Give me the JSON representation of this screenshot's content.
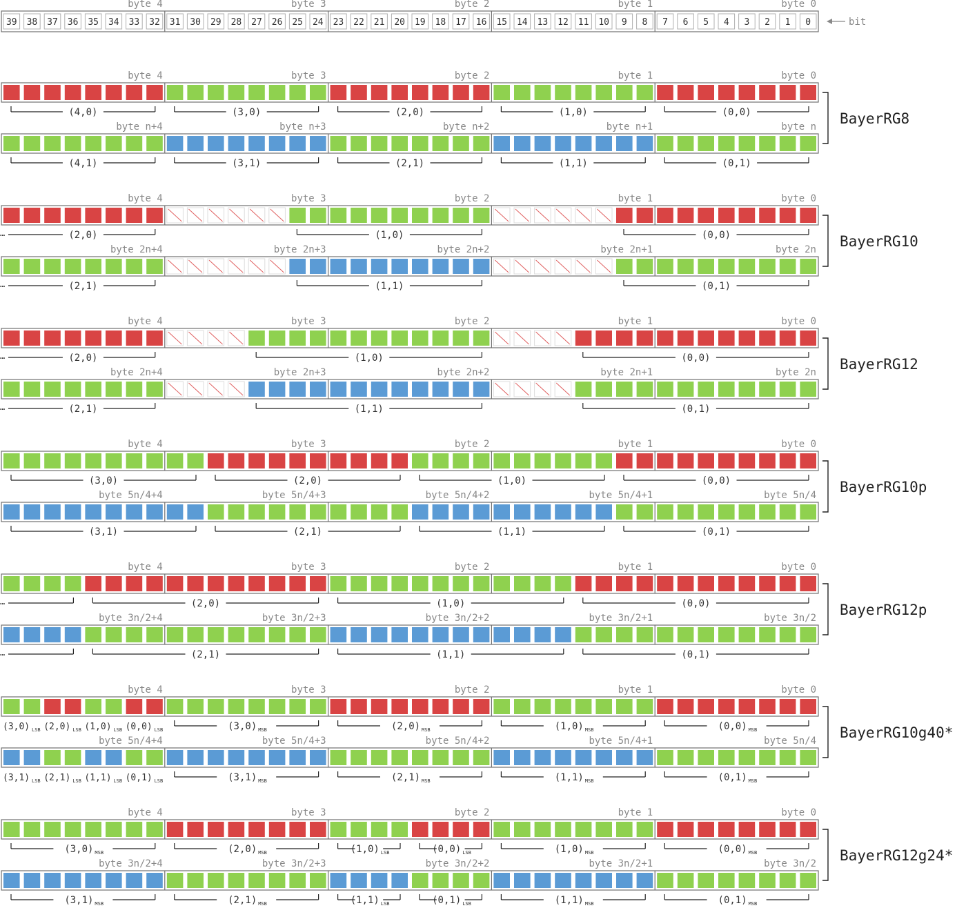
{
  "palette": {
    "red": "#d94444",
    "green": "#8fd14f",
    "blue": "#5b9bd5",
    "pad_stroke": "#e06060",
    "frame": "#707070",
    "text": "#333333",
    "label_gray": "#888888"
  },
  "header": {
    "bits": [
      "39",
      "38",
      "37",
      "36",
      "35",
      "34",
      "33",
      "32",
      "31",
      "30",
      "29",
      "28",
      "27",
      "26",
      "25",
      "24",
      "23",
      "22",
      "21",
      "20",
      "19",
      "18",
      "17",
      "16",
      "15",
      "14",
      "13",
      "12",
      "11",
      "10",
      "9",
      "8",
      "7",
      "6",
      "5",
      "4",
      "3",
      "2",
      "1",
      "0"
    ],
    "byte_labels": [
      "byte 4",
      "byte 3",
      "byte 2",
      "byte 1",
      "byte 0"
    ],
    "bit_arrow_label": "bit"
  },
  "formats": [
    {
      "name": "BayerRG8",
      "rows": [
        {
          "byte_labels": [
            "byte 4",
            "byte 3",
            "byte 2",
            "byte 1",
            "byte 0"
          ],
          "cells": "RRRRRRRRGGGGGGGGRRRRRRRRGGGGGGGGRRRRRRRR",
          "brackets": [
            {
              "label": "(4,0)",
              "from": 0,
              "to": 7,
              "cont": false
            },
            {
              "label": "(3,0)",
              "from": 8,
              "to": 15,
              "cont": false
            },
            {
              "label": "(2,0)",
              "from": 16,
              "to": 23,
              "cont": false
            },
            {
              "label": "(1,0)",
              "from": 24,
              "to": 31,
              "cont": false
            },
            {
              "label": "(0,0)",
              "from": 32,
              "to": 39,
              "cont": false
            }
          ]
        },
        {
          "byte_labels": [
            "byte n+4",
            "byte n+3",
            "byte n+2",
            "byte n+1",
            "byte n"
          ],
          "cells": "GGGGGGGGBBBBBBBBGGGGGGGGBBBBBBBBGGGGGGGG",
          "brackets": [
            {
              "label": "(4,1)",
              "from": 0,
              "to": 7,
              "cont": false
            },
            {
              "label": "(3,1)",
              "from": 8,
              "to": 15,
              "cont": false
            },
            {
              "label": "(2,1)",
              "from": 16,
              "to": 23,
              "cont": false
            },
            {
              "label": "(1,1)",
              "from": 24,
              "to": 31,
              "cont": false
            },
            {
              "label": "(0,1)",
              "from": 32,
              "to": 39,
              "cont": false
            }
          ]
        }
      ]
    },
    {
      "name": "BayerRG10",
      "rows": [
        {
          "byte_labels": [
            "byte 4",
            "byte 3",
            "byte 2",
            "byte 1",
            "byte 0"
          ],
          "cells": "RRRRRRRRXXXXXXGGGGGGGGGGXXXXXXRRRRRRRRRR",
          "brackets": [
            {
              "label": "(2,0)",
              "from": 0,
              "to": 7,
              "cont": true
            },
            {
              "label": "(1,0)",
              "from": 14,
              "to": 23,
              "cont": false
            },
            {
              "label": "(0,0)",
              "from": 30,
              "to": 39,
              "cont": false
            }
          ]
        },
        {
          "byte_labels": [
            "byte 2n+4",
            "byte 2n+3",
            "byte 2n+2",
            "byte 2n+1",
            "byte 2n"
          ],
          "cells": "GGGGGGGGXXXXXXBBBBBBBBBBXXXXXXGGGGGGGGGG",
          "brackets": [
            {
              "label": "(2,1)",
              "from": 0,
              "to": 7,
              "cont": true
            },
            {
              "label": "(1,1)",
              "from": 14,
              "to": 23,
              "cont": false
            },
            {
              "label": "(0,1)",
              "from": 30,
              "to": 39,
              "cont": false
            }
          ]
        }
      ]
    },
    {
      "name": "BayerRG12",
      "rows": [
        {
          "byte_labels": [
            "byte 4",
            "byte 3",
            "byte 2",
            "byte 1",
            "byte 0"
          ],
          "cells": "RRRRRRRRXXXXGGGGGGGGGGGGXXXXRRRRRRRRRRRR",
          "brackets": [
            {
              "label": "(2,0)",
              "from": 0,
              "to": 7,
              "cont": true
            },
            {
              "label": "(1,0)",
              "from": 12,
              "to": 23,
              "cont": false
            },
            {
              "label": "(0,0)",
              "from": 28,
              "to": 39,
              "cont": false
            }
          ]
        },
        {
          "byte_labels": [
            "byte 2n+4",
            "byte 2n+3",
            "byte 2n+2",
            "byte 2n+1",
            "byte 2n"
          ],
          "cells": "GGGGGGGGXXXXBBBBBBBBBBBBXXXXGGGGGGGGGGGG",
          "brackets": [
            {
              "label": "(2,1)",
              "from": 0,
              "to": 7,
              "cont": true
            },
            {
              "label": "(1,1)",
              "from": 12,
              "to": 23,
              "cont": false
            },
            {
              "label": "(0,1)",
              "from": 28,
              "to": 39,
              "cont": false
            }
          ]
        }
      ]
    },
    {
      "name": "BayerRG10p",
      "rows": [
        {
          "byte_labels": [
            "byte 4",
            "byte 3",
            "byte 2",
            "byte 1",
            "byte 0"
          ],
          "cells": "GGGGGGGGGGRRRRRRRRRRGGGGGGGGGGRRRRRRRRRR",
          "brackets": [
            {
              "label": "(3,0)",
              "from": 0,
              "to": 9,
              "cont": false
            },
            {
              "label": "(2,0)",
              "from": 10,
              "to": 19,
              "cont": false
            },
            {
              "label": "(1,0)",
              "from": 20,
              "to": 29,
              "cont": false
            },
            {
              "label": "(0,0)",
              "from": 30,
              "to": 39,
              "cont": false
            }
          ]
        },
        {
          "byte_labels": [
            "byte 5n/4+4",
            "byte 5n/4+3",
            "byte 5n/4+2",
            "byte 5n/4+1",
            "byte 5n/4"
          ],
          "cells": "BBBBBBBBBBGGGGGGGGGGBBBBBBBBBBGGGGGGGGGG",
          "brackets": [
            {
              "label": "(3,1)",
              "from": 0,
              "to": 9,
              "cont": false
            },
            {
              "label": "(2,1)",
              "from": 10,
              "to": 19,
              "cont": false
            },
            {
              "label": "(1,1)",
              "from": 20,
              "to": 29,
              "cont": false
            },
            {
              "label": "(0,1)",
              "from": 30,
              "to": 39,
              "cont": false
            }
          ]
        }
      ]
    },
    {
      "name": "BayerRG12p",
      "rows": [
        {
          "byte_labels": [
            "byte 4",
            "byte 3",
            "byte 2",
            "byte 1",
            "byte 0"
          ],
          "cells": "GGGGRRRRRRRRRRRRGGGGGGGGGGGGRRRRRRRRRRRR",
          "brackets": [
            {
              "label": "",
              "from": 0,
              "to": 3,
              "cont": true
            },
            {
              "label": "(2,0)",
              "from": 4,
              "to": 15,
              "cont": false
            },
            {
              "label": "(1,0)",
              "from": 16,
              "to": 27,
              "cont": false
            },
            {
              "label": "(0,0)",
              "from": 28,
              "to": 39,
              "cont": false
            }
          ]
        },
        {
          "byte_labels": [
            "byte 3n/2+4",
            "byte 3n/2+3",
            "byte 3n/2+2",
            "byte 3n/2+1",
            "byte 3n/2"
          ],
          "cells": "BBBBGGGGGGGGGGGGBBBBBBBBBBBBGGGGGGGGGGGG",
          "brackets": [
            {
              "label": "",
              "from": 0,
              "to": 3,
              "cont": true
            },
            {
              "label": "(2,1)",
              "from": 4,
              "to": 15,
              "cont": false
            },
            {
              "label": "(1,1)",
              "from": 16,
              "to": 27,
              "cont": false
            },
            {
              "label": "(0,1)",
              "from": 28,
              "to": 39,
              "cont": false
            }
          ]
        }
      ]
    },
    {
      "name": "BayerRG10g40*",
      "rows": [
        {
          "byte_labels": [
            "byte 4",
            "byte 3",
            "byte 2",
            "byte 1",
            "byte 0"
          ],
          "cells": "GGRRGGRRGGGGGGGGRRRRRRRRGGGGGGGGRRRRRRRR",
          "lsb_labels": [
            {
              "label": "(3,0)",
              "sub": "LSB",
              "from": 0,
              "to": 1
            },
            {
              "label": "(2,0)",
              "sub": "LSB",
              "from": 2,
              "to": 3
            },
            {
              "label": "(1,0)",
              "sub": "LSB",
              "from": 4,
              "to": 5
            },
            {
              "label": "(0,0)",
              "sub": "LSB",
              "from": 6,
              "to": 7
            }
          ],
          "brackets": [
            {
              "label": "(3,0)",
              "sub": "MSB",
              "from": 8,
              "to": 15,
              "cont": false
            },
            {
              "label": "(2,0)",
              "sub": "MSB",
              "from": 16,
              "to": 23,
              "cont": false
            },
            {
              "label": "(1,0)",
              "sub": "MSB",
              "from": 24,
              "to": 31,
              "cont": false
            },
            {
              "label": "(0,0)",
              "sub": "MSB",
              "from": 32,
              "to": 39,
              "cont": false
            }
          ]
        },
        {
          "byte_labels": [
            "byte 5n/4+4",
            "byte 5n/4+3",
            "byte 5n/4+2",
            "byte 5n/4+1",
            "byte 5n/4"
          ],
          "cells": "BBGGBBGGBBBBBBBBGGGGGGGGBBBBBBBBGGGGGGGG",
          "lsb_labels": [
            {
              "label": "(3,1)",
              "sub": "LSB",
              "from": 0,
              "to": 1
            },
            {
              "label": "(2,1)",
              "sub": "LSB",
              "from": 2,
              "to": 3
            },
            {
              "label": "(1,1)",
              "sub": "LSB",
              "from": 4,
              "to": 5
            },
            {
              "label": "(0,1)",
              "sub": "LSB",
              "from": 6,
              "to": 7
            }
          ],
          "brackets": [
            {
              "label": "(3,1)",
              "sub": "MSB",
              "from": 8,
              "to": 15,
              "cont": false
            },
            {
              "label": "(2,1)",
              "sub": "MSB",
              "from": 16,
              "to": 23,
              "cont": false
            },
            {
              "label": "(1,1)",
              "sub": "MSB",
              "from": 24,
              "to": 31,
              "cont": false
            },
            {
              "label": "(0,1)",
              "sub": "MSB",
              "from": 32,
              "to": 39,
              "cont": false
            }
          ]
        }
      ]
    },
    {
      "name": "BayerRG12g24*",
      "rows": [
        {
          "byte_labels": [
            "byte 4",
            "byte 3",
            "byte 2",
            "byte 1",
            "byte 0"
          ],
          "cells": "GGGGGGGGRRRRRRRRGGGGRRRRGGGGGGGGRRRRRRRR",
          "brackets": [
            {
              "label": "(3,0)",
              "sub": "MSB",
              "from": 0,
              "to": 7,
              "cont": false
            },
            {
              "label": "(2,0)",
              "sub": "MSB",
              "from": 8,
              "to": 15,
              "cont": false
            },
            {
              "label": "(1,0)",
              "sub": "LSB",
              "from": 16,
              "to": 19,
              "cont": false
            },
            {
              "label": "(0,0)",
              "sub": "LSB",
              "from": 20,
              "to": 23,
              "cont": false
            },
            {
              "label": "(1,0)",
              "sub": "MSB",
              "from": 24,
              "to": 31,
              "cont": false
            },
            {
              "label": "(0,0)",
              "sub": "MSB",
              "from": 32,
              "to": 39,
              "cont": false
            }
          ]
        },
        {
          "byte_labels": [
            "byte 3n/2+4",
            "byte 3n/2+3",
            "byte 3n/2+2",
            "byte 3n/2+1",
            "byte 3n/2"
          ],
          "cells": "BBBBBBBBGGGGGGGGBBBBGGGGBBBBBBBBGGGGGGGG",
          "brackets": [
            {
              "label": "(3,1)",
              "sub": "MSB",
              "from": 0,
              "to": 7,
              "cont": false
            },
            {
              "label": "(2,1)",
              "sub": "MSB",
              "from": 8,
              "to": 15,
              "cont": false
            },
            {
              "label": "(1,1)",
              "sub": "LSB",
              "from": 16,
              "to": 19,
              "cont": false
            },
            {
              "label": "(0,1)",
              "sub": "LSB",
              "from": 20,
              "to": 23,
              "cont": false
            },
            {
              "label": "(1,1)",
              "sub": "MSB",
              "from": 24,
              "to": 31,
              "cont": false
            },
            {
              "label": "(0,1)",
              "sub": "MSB",
              "from": 32,
              "to": 39,
              "cont": false
            }
          ]
        }
      ]
    }
  ]
}
